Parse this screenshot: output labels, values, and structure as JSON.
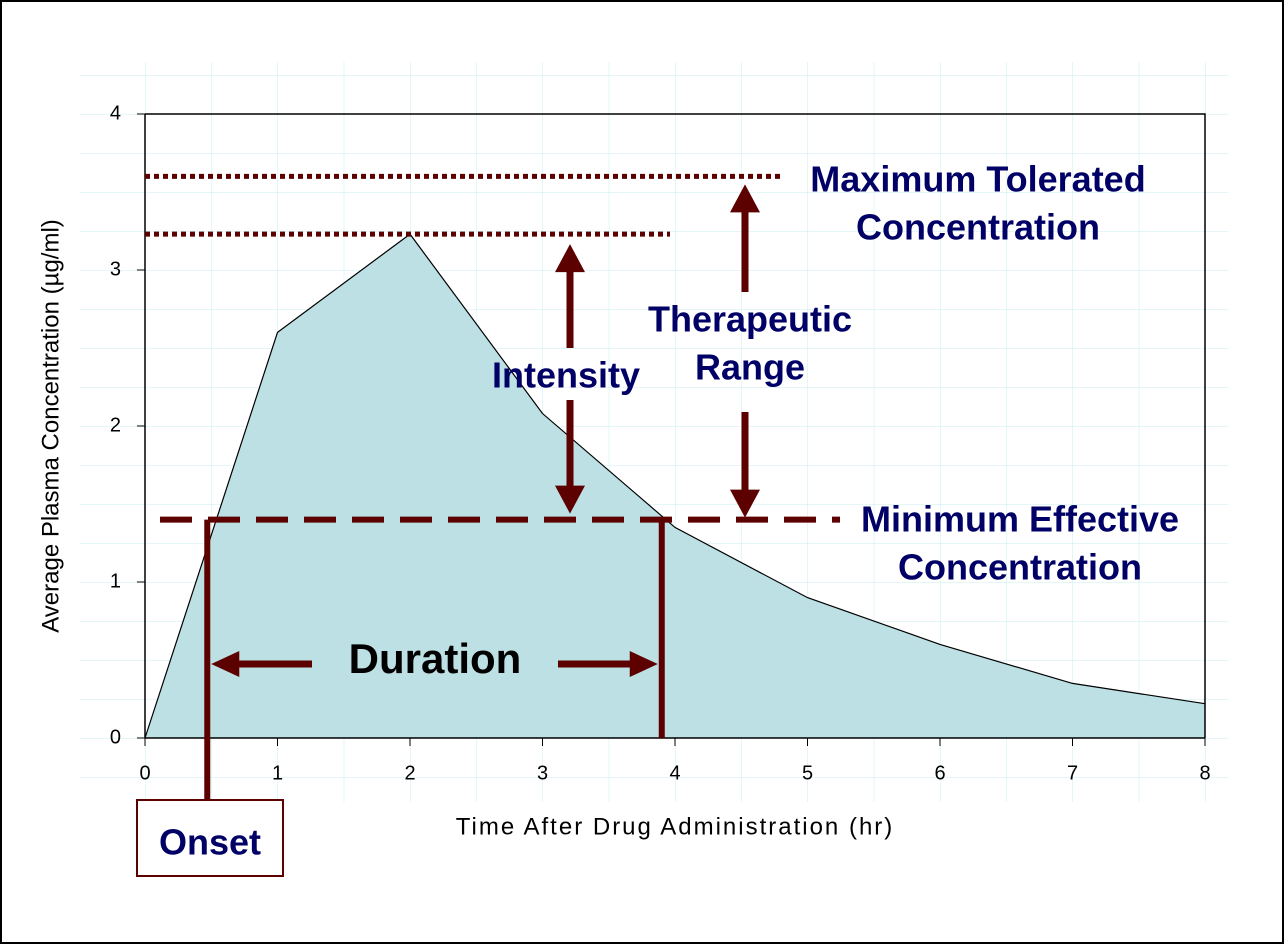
{
  "chart_data": {
    "type": "area",
    "x": [
      0,
      1,
      2,
      3,
      4,
      5,
      6,
      7,
      8
    ],
    "values": [
      0,
      2.6,
      3.23,
      2.08,
      1.35,
      0.9,
      0.6,
      0.35,
      0.22
    ],
    "color": "#bde0e4",
    "xlim": [
      0,
      8
    ],
    "ylim": [
      0,
      4
    ],
    "xticks": [
      0,
      1,
      2,
      3,
      4,
      5,
      6,
      7,
      8
    ],
    "yticks": [
      0,
      1,
      2,
      3,
      4
    ],
    "xlabel": "Time After Drug Administration (hr)",
    "ylabel": "Average Plasma Concentration (µg/ml)",
    "annotations": {
      "max_tolerated": {
        "label": [
          "Maximum Tolerated",
          "Concentration"
        ],
        "y": 3.6
      },
      "min_effective": {
        "label": [
          "Minimum Effective",
          "Concentration"
        ],
        "y": 1.4
      },
      "intensity": {
        "label": "Intensity"
      },
      "therapeutic": {
        "label": [
          "Therapeutic",
          "Range"
        ]
      },
      "onset": {
        "label": "Onset",
        "x": 0.47
      },
      "duration": {
        "label": "Duration",
        "x_end": 3.9
      }
    }
  }
}
